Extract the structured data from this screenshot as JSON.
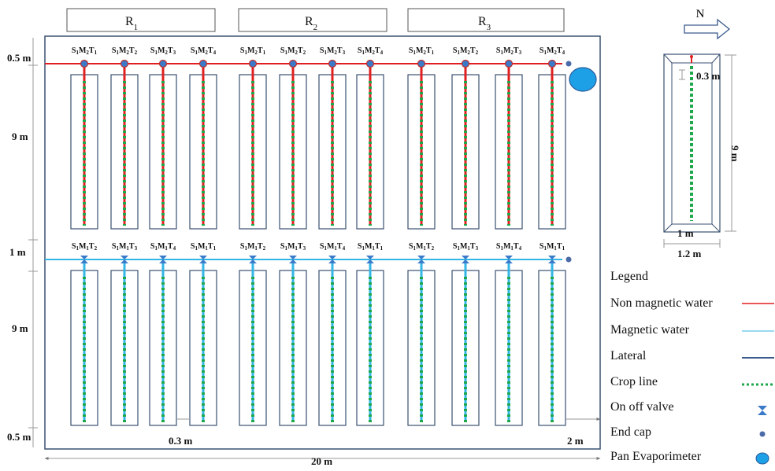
{
  "replicates": [
    {
      "label": "R",
      "sub": "1"
    },
    {
      "label": "R",
      "sub": "2"
    },
    {
      "label": "R",
      "sub": "3"
    }
  ],
  "north_label": "N",
  "top_row_labels": [
    "S1M2T1",
    "S1M2T2",
    "S1M2T3",
    "S1M2T4",
    "S1M2T1",
    "S1M2T2",
    "S1M2T3",
    "S1M2T4",
    "S1M2T1",
    "S1M2T2",
    "S1M2T3",
    "S1M2T4"
  ],
  "bottom_row_labels": [
    "S1M1T2",
    "S1M1T3",
    "S1M1T4",
    "S1M1T1",
    "S1M1T2",
    "S1M1T3",
    "S1M1T4",
    "S1M1T1",
    "S1M1T2",
    "S1M1T3",
    "S1M1T4",
    "S1M1T1"
  ],
  "dimensions": {
    "top_margin": "0.5 m",
    "plot_length_top": "9 m",
    "gap": "1 m",
    "plot_length_bottom": "9 m",
    "bottom_margin": "0.5 m",
    "plot_spacing": "0.3 m",
    "right_margin": "2 m",
    "field_width": "20 m"
  },
  "detail": {
    "inner_offset": "0.3 m",
    "length": "9 m",
    "inner_width": "1 m",
    "outer_width": "1.2 m"
  },
  "legend": {
    "title": "Legend",
    "items": [
      {
        "label": "Non magnetic water",
        "symbol": "red-line"
      },
      {
        "label": "Magnetic water",
        "symbol": "light-blue-line"
      },
      {
        "label": "Lateral",
        "symbol": "dark-blue-line"
      },
      {
        "label": "Crop line",
        "symbol": "green-dotted-line"
      },
      {
        "label": "On off valve",
        "symbol": "valve"
      },
      {
        "label": "End cap",
        "symbol": "end-cap"
      },
      {
        "label": "Pan Evaporimeter",
        "symbol": "pan-evaporimeter"
      }
    ]
  },
  "colors": {
    "non_magnetic": "#e02020",
    "magnetic": "#33b5e5",
    "lateral": "#3a5a8c",
    "crop": "#1ea84b",
    "pan": "#1ea0e6",
    "outline": "#3a5070"
  }
}
